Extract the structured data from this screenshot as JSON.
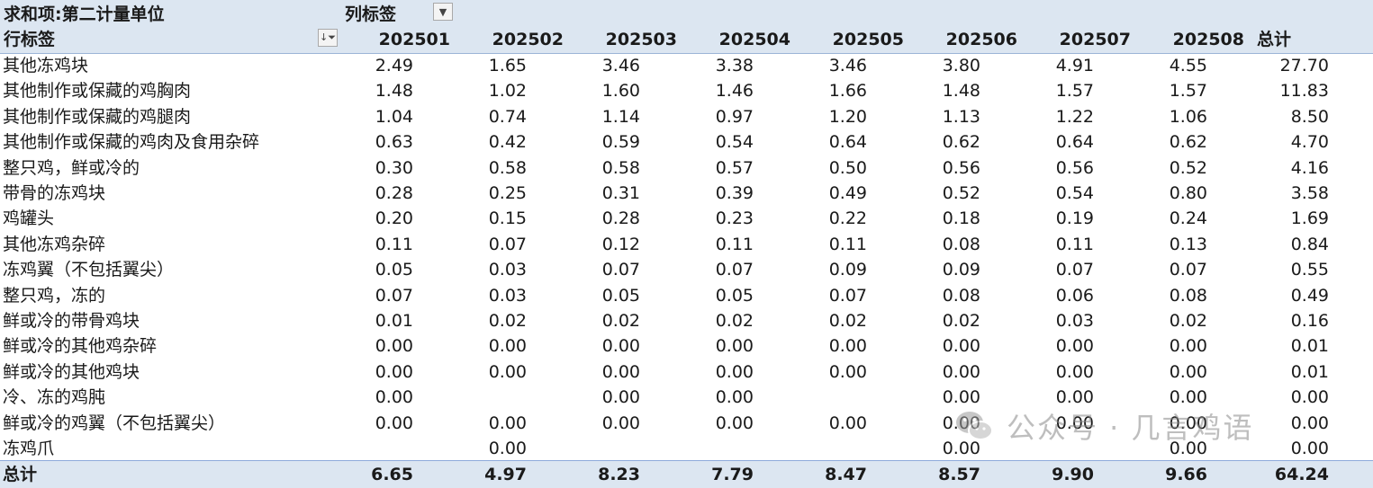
{
  "pivot": {
    "values_label": "求和项:第二计量单位",
    "col_labels_caption": "列标签",
    "row_labels_caption": "行标签",
    "columns": [
      "202501",
      "202502",
      "202503",
      "202504",
      "202505",
      "202506",
      "202507",
      "202508",
      "总计"
    ],
    "rows": [
      {
        "label": "其他冻鸡块",
        "values": [
          "2.49",
          "1.65",
          "3.46",
          "3.38",
          "3.46",
          "3.80",
          "4.91",
          "4.55",
          "27.70"
        ]
      },
      {
        "label": "其他制作或保藏的鸡胸肉",
        "values": [
          "1.48",
          "1.02",
          "1.60",
          "1.46",
          "1.66",
          "1.48",
          "1.57",
          "1.57",
          "11.83"
        ]
      },
      {
        "label": "其他制作或保藏的鸡腿肉",
        "values": [
          "1.04",
          "0.74",
          "1.14",
          "0.97",
          "1.20",
          "1.13",
          "1.22",
          "1.06",
          "8.50"
        ]
      },
      {
        "label": "其他制作或保藏的鸡肉及食用杂碎",
        "values": [
          "0.63",
          "0.42",
          "0.59",
          "0.54",
          "0.64",
          "0.62",
          "0.64",
          "0.62",
          "4.70"
        ]
      },
      {
        "label": "整只鸡，鲜或冷的",
        "values": [
          "0.30",
          "0.58",
          "0.58",
          "0.57",
          "0.50",
          "0.56",
          "0.56",
          "0.52",
          "4.16"
        ]
      },
      {
        "label": "带骨的冻鸡块",
        "values": [
          "0.28",
          "0.25",
          "0.31",
          "0.39",
          "0.49",
          "0.52",
          "0.54",
          "0.80",
          "3.58"
        ]
      },
      {
        "label": "鸡罐头",
        "values": [
          "0.20",
          "0.15",
          "0.28",
          "0.23",
          "0.22",
          "0.18",
          "0.19",
          "0.24",
          "1.69"
        ]
      },
      {
        "label": "其他冻鸡杂碎",
        "values": [
          "0.11",
          "0.07",
          "0.12",
          "0.11",
          "0.11",
          "0.08",
          "0.11",
          "0.13",
          "0.84"
        ]
      },
      {
        "label": "冻鸡翼（不包括翼尖）",
        "values": [
          "0.05",
          "0.03",
          "0.07",
          "0.07",
          "0.09",
          "0.09",
          "0.07",
          "0.07",
          "0.55"
        ]
      },
      {
        "label": "整只鸡，冻的",
        "values": [
          "0.07",
          "0.03",
          "0.05",
          "0.05",
          "0.07",
          "0.08",
          "0.06",
          "0.08",
          "0.49"
        ]
      },
      {
        "label": "鲜或冷的带骨鸡块",
        "values": [
          "0.01",
          "0.02",
          "0.02",
          "0.02",
          "0.02",
          "0.02",
          "0.03",
          "0.02",
          "0.16"
        ]
      },
      {
        "label": "鲜或冷的其他鸡杂碎",
        "values": [
          "0.00",
          "0.00",
          "0.00",
          "0.00",
          "0.00",
          "0.00",
          "0.00",
          "0.00",
          "0.01"
        ]
      },
      {
        "label": "鲜或冷的其他鸡块",
        "values": [
          "0.00",
          "0.00",
          "0.00",
          "0.00",
          "0.00",
          "0.00",
          "0.00",
          "0.00",
          "0.01"
        ]
      },
      {
        "label": "冷、冻的鸡肫",
        "values": [
          "0.00",
          "",
          "0.00",
          "0.00",
          "",
          "0.00",
          "0.00",
          "0.00",
          "0.00"
        ]
      },
      {
        "label": "鲜或冷的鸡翼（不包括翼尖）",
        "values": [
          "0.00",
          "0.00",
          "0.00",
          "0.00",
          "0.00",
          "0.00",
          "0.00",
          "0.00",
          "0.00"
        ]
      },
      {
        "label": "冻鸡爪",
        "values": [
          "",
          "0.00",
          "",
          "",
          "",
          "0.00",
          "",
          "0.00",
          "0.00"
        ]
      }
    ],
    "total": {
      "label": "总计",
      "values": [
        "6.65",
        "4.97",
        "8.23",
        "7.79",
        "8.47",
        "8.57",
        "9.90",
        "9.66",
        "64.24"
      ]
    }
  },
  "icons": {
    "filter_dropdown": "dropdown-arrow-icon",
    "sort_filter": "sort-filter-icon"
  },
  "watermark": {
    "text": "公众号 · 几言鸡语",
    "icon": "wechat-icon"
  },
  "colors": {
    "header_band": "#dce6f1",
    "total_border": "#8eaadb"
  }
}
